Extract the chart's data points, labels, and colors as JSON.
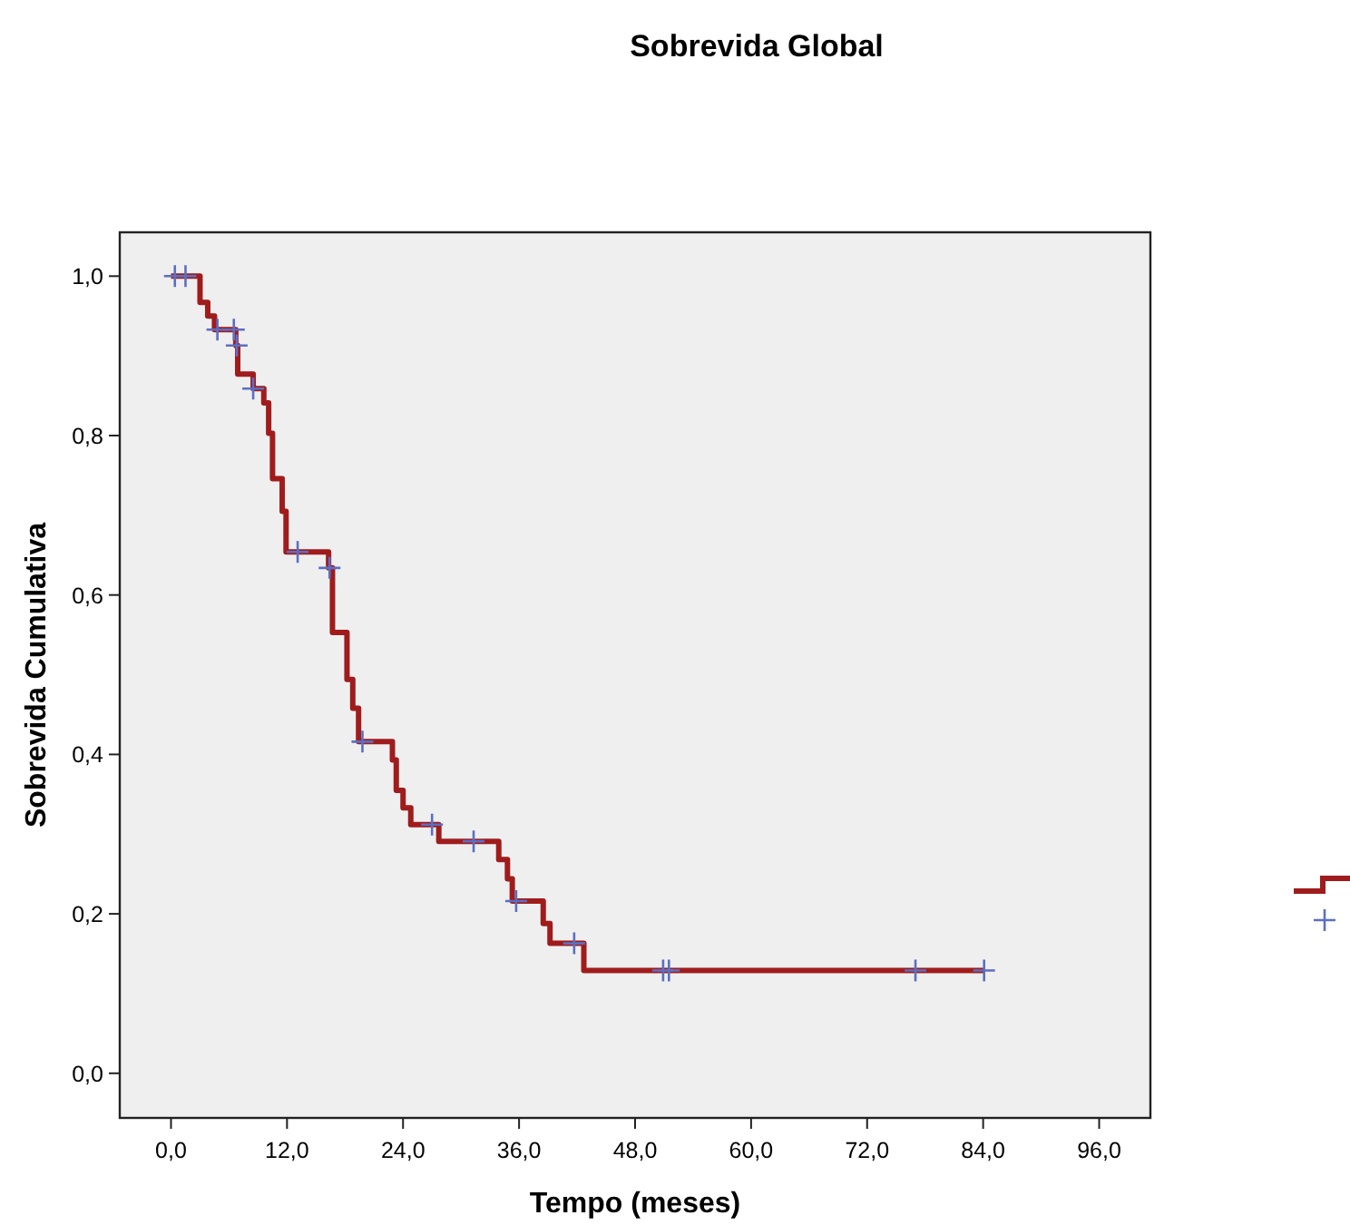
{
  "chart_data": {
    "type": "step",
    "title": "Sobrevida Global",
    "xlabel": "Tempo (meses)",
    "ylabel": "Sobrevida Cumulativa",
    "xlim": [
      -5.3,
      101.3
    ],
    "ylim": [
      -0.056,
      1.055
    ],
    "xticks": [
      {
        "value": 0,
        "label": "0,0"
      },
      {
        "value": 12,
        "label": "12,0"
      },
      {
        "value": 24,
        "label": "24,0"
      },
      {
        "value": 36,
        "label": "36,0"
      },
      {
        "value": 48,
        "label": "48,0"
      },
      {
        "value": 60,
        "label": "60,0"
      },
      {
        "value": 72,
        "label": "72,0"
      },
      {
        "value": 84,
        "label": "84,0"
      },
      {
        "value": 96,
        "label": "96,0"
      }
    ],
    "yticks": [
      {
        "value": 0,
        "label": "0,0"
      },
      {
        "value": 0.2,
        "label": "0,2"
      },
      {
        "value": 0.4,
        "label": "0,4"
      },
      {
        "value": 0.6,
        "label": "0,6"
      },
      {
        "value": 0.8,
        "label": "0,8"
      },
      {
        "value": 1,
        "label": "1,0"
      }
    ],
    "grid": false,
    "series": [
      {
        "color": "#a01c1c",
        "line_style": "solid",
        "marker": "none",
        "x": [
          0,
          3.0,
          3.8,
          4.5,
          6.7,
          6.9,
          8.5,
          9.6,
          10.1,
          10.5,
          11.5,
          11.9,
          16.3,
          16.7,
          18.2,
          18.8,
          19.4,
          22.9,
          23.3,
          24.0,
          24.8,
          27.7,
          33.9,
          34.8,
          35.3,
          38.5,
          39.2,
          42.7,
          84.1
        ],
        "values": [
          1.0,
          0.967,
          0.95,
          0.933,
          0.913,
          0.877,
          0.859,
          0.841,
          0.803,
          0.746,
          0.705,
          0.654,
          0.634,
          0.553,
          0.494,
          0.458,
          0.416,
          0.393,
          0.355,
          0.333,
          0.312,
          0.291,
          0.268,
          0.244,
          0.216,
          0.188,
          0.163,
          0.129,
          0.129
        ]
      },
      {
        "type": "scatter",
        "color": "#5b6fc4",
        "marker": "cross",
        "x": [
          0.4,
          1.5,
          4.8,
          6.5,
          6.8,
          8.5,
          13.1,
          16.4,
          19.8,
          27.0,
          31.3,
          35.7,
          41.7,
          50.9,
          51.5,
          77.0,
          84.1
        ],
        "values": [
          1.0,
          1.0,
          0.933,
          0.933,
          0.913,
          0.859,
          0.654,
          0.634,
          0.416,
          0.312,
          0.291,
          0.216,
          0.163,
          0.129,
          0.129,
          0.129,
          0.129
        ]
      }
    ]
  }
}
